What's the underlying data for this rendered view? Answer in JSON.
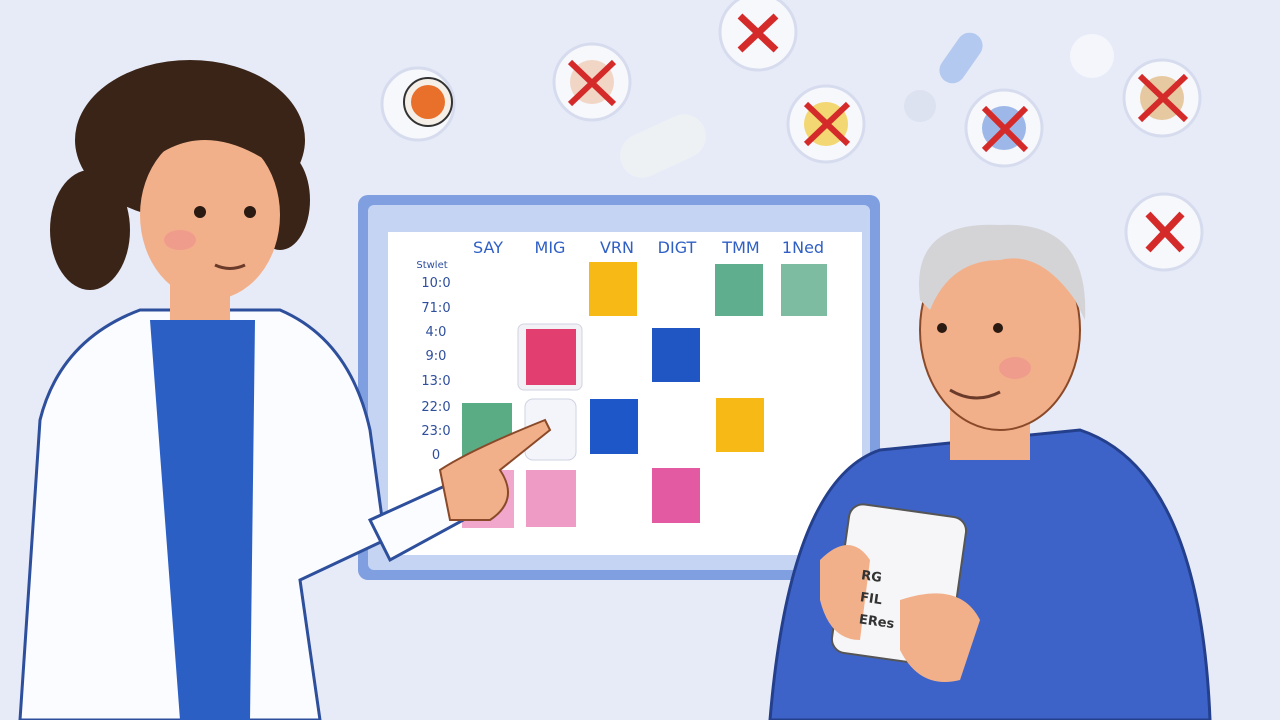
{
  "schedule": {
    "columns": [
      "SAY",
      "MIG",
      "VRN",
      "DIGT",
      "TMM",
      "1Ned"
    ],
    "row_header": "Stwlet",
    "times": [
      "10:0",
      "71:0",
      "4:0",
      "9:0",
      "13:0",
      "22:0",
      "23:0",
      "0"
    ]
  },
  "pill_box": {
    "lines": [
      "RG",
      "FIL",
      "ERes"
    ]
  }
}
